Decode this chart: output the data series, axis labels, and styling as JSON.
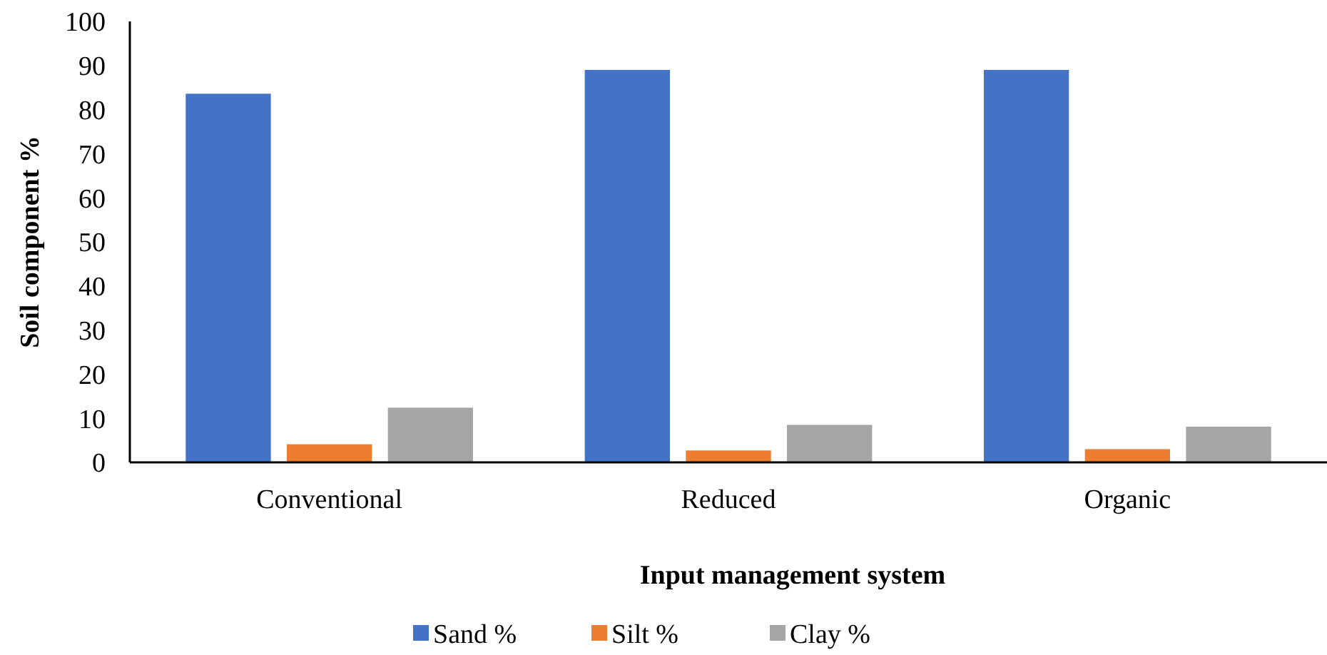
{
  "chart_data": {
    "type": "bar",
    "xlabel": "Input management system",
    "ylabel": "Soil component %",
    "categories": [
      "Conventional",
      "Reduced",
      "Organic"
    ],
    "series": [
      {
        "name": "Sand %",
        "color": "#4472c4",
        "values": [
          83.6,
          89.0,
          89.0
        ]
      },
      {
        "name": "Silt %",
        "color": "#ed7d31",
        "values": [
          4.1,
          2.7,
          3.0
        ]
      },
      {
        "name": "Clay %",
        "color": "#a5a5a5",
        "values": [
          12.4,
          8.5,
          8.1
        ]
      }
    ],
    "ylim": [
      0,
      100
    ],
    "yticks": [
      0,
      10,
      20,
      30,
      40,
      50,
      60,
      70,
      80,
      90,
      100
    ],
    "grid": false,
    "legend": "bottom"
  }
}
